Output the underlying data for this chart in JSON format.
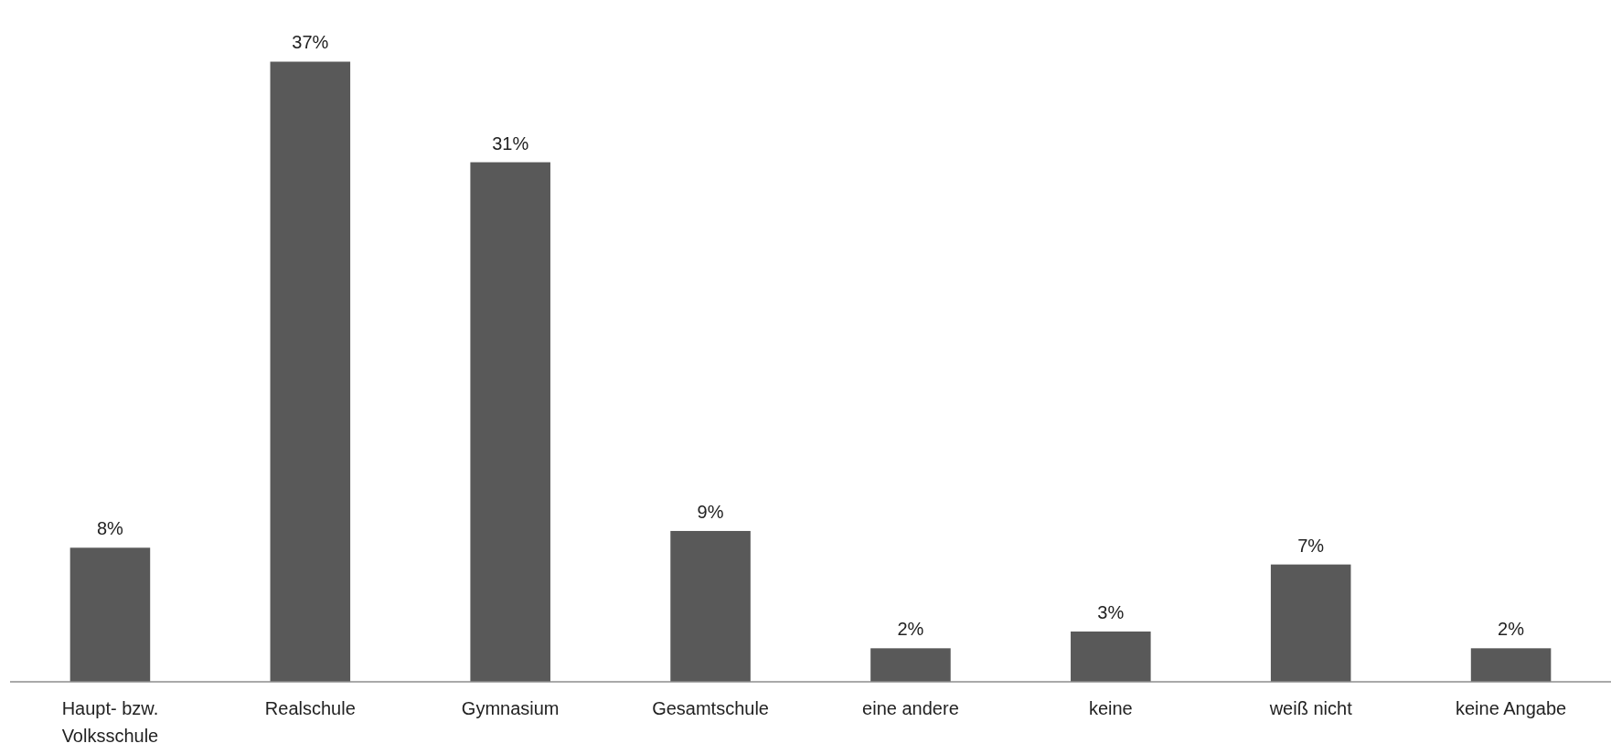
{
  "chart_data": {
    "type": "bar",
    "categories": [
      "Haupt- bzw. Volksschule",
      "Realschule",
      "Gymnasium",
      "Gesamtschule",
      "eine andere",
      "keine",
      "weiß nicht",
      "keine Angabe"
    ],
    "values": [
      8,
      37,
      31,
      9,
      2,
      3,
      7,
      2
    ],
    "value_labels": [
      "8%",
      "37%",
      "31%",
      "9%",
      "2%",
      "3%",
      "7%",
      "2%"
    ],
    "color": "#595959"
  }
}
